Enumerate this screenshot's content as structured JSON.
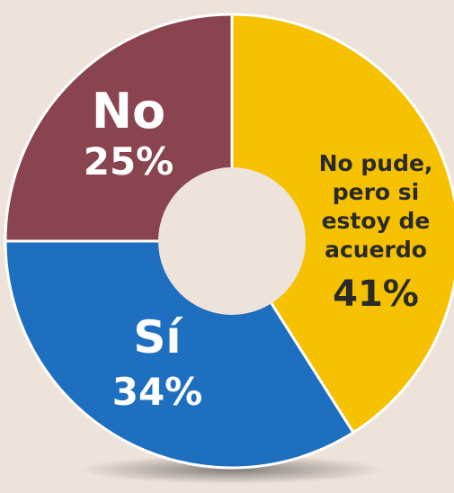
{
  "chart_data": {
    "type": "pie",
    "donut": true,
    "slices": [
      {
        "label": "No pude, pero si estoy de acuerdo",
        "label_lines": [
          "No pude,",
          "pero si",
          "estoy de",
          "acuerdo"
        ],
        "value": 41,
        "value_text": "41%",
        "color": "#f5c100"
      },
      {
        "label": "Sí",
        "label_lines": [
          "Sí"
        ],
        "value": 34,
        "value_text": "34%",
        "color": "#1e6fbf"
      },
      {
        "label": "No",
        "label_lines": [
          "No"
        ],
        "value": 25,
        "value_text": "25%",
        "color": "#8a4450"
      }
    ],
    "start": "top",
    "direction": "clockwise",
    "background": "#eee3db"
  }
}
